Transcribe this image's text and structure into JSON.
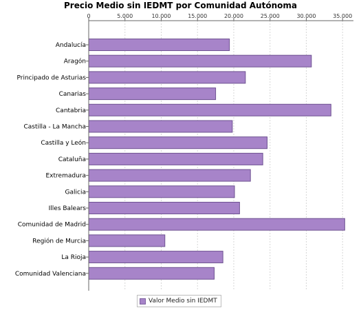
{
  "chart_data": {
    "type": "bar",
    "orientation": "horizontal",
    "title": "Precio Medio sin IEDMT por Comunidad Autónoma",
    "xlabel": "",
    "ylabel": "",
    "xlim": [
      0,
      36500
    ],
    "x_ticks": [
      0,
      5000,
      10000,
      15000,
      20000,
      25000,
      30000,
      35000
    ],
    "x_tick_labels": [
      "0",
      "5.000",
      "10.000",
      "15.000",
      "20.000",
      "25.000",
      "30.000",
      "35.000"
    ],
    "axis_position": "top",
    "grid": true,
    "legend_position": "bottom-center",
    "bar_color": "#a784c9",
    "bar_border_color": "#6e5291",
    "categories": [
      "Andalucía",
      "Aragón",
      "Principado de Asturias",
      "Canarias",
      "Cantabria",
      "Castilla - La Mancha",
      "Castilla y León",
      "Cataluña",
      "Extremadura",
      "Galicia",
      "Illes Balears",
      "Comunidad de Madrid",
      "Región de Murcia",
      "La Rioja",
      "Comunidad Valenciana"
    ],
    "series": [
      {
        "name": "Valor Medio sin IEDMT",
        "values": [
          19400,
          30700,
          21600,
          17500,
          33400,
          19800,
          24600,
          24000,
          22300,
          20100,
          20800,
          35300,
          10500,
          18500,
          17300
        ]
      }
    ]
  }
}
